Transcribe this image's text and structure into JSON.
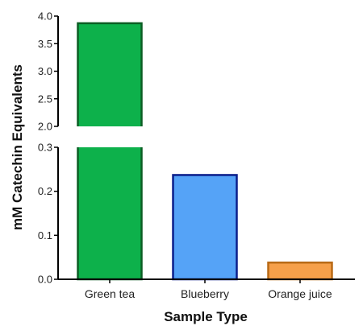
{
  "chart_data": {
    "type": "bar",
    "title": "",
    "xlabel": "Sample Type",
    "ylabel": "mM Catechin Equivalents",
    "categories": [
      "Green tea",
      "Blueberry",
      "Orange juice"
    ],
    "values": [
      3.87,
      0.237,
      0.038
    ],
    "colors": [
      "#0db14b",
      "#55a3f7",
      "#f6a04a"
    ],
    "edge_colors": [
      "#0b5e24",
      "#0b1e8a",
      "#b86a16"
    ],
    "y_axis_break": true,
    "lower_segment": {
      "ylim": [
        0,
        0.3
      ],
      "ticks": [
        "0.0",
        "0.1",
        "0.2",
        "0.3"
      ],
      "tick_values": [
        0,
        0.1,
        0.2,
        0.3
      ]
    },
    "upper_segment": {
      "ylim": [
        2.0,
        4.0
      ],
      "ticks": [
        "2.0",
        "2.5",
        "3.0",
        "3.5",
        "4.0"
      ],
      "tick_values": [
        2.0,
        2.5,
        3.0,
        3.5,
        4.0
      ]
    },
    "grid": false,
    "legend": "none"
  }
}
